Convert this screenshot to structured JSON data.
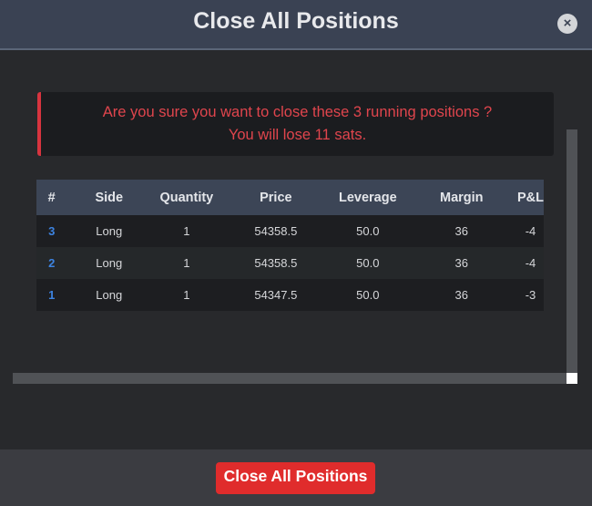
{
  "header": {
    "title": "Close All Positions",
    "close_icon": "×"
  },
  "alert": {
    "line1": "Are you sure you want to close these 3 running positions ?",
    "line2": "You will lose 11 sats."
  },
  "table": {
    "columns": [
      "#",
      "Side",
      "Quantity",
      "Price",
      "Leverage",
      "Margin",
      "P&L"
    ],
    "rows": [
      [
        "3",
        "Long",
        "1",
        "54358.5",
        "50.0",
        "36",
        "-4"
      ],
      [
        "2",
        "Long",
        "1",
        "54358.5",
        "50.0",
        "36",
        "-4"
      ],
      [
        "1",
        "Long",
        "1",
        "54347.5",
        "50.0",
        "36",
        "-3"
      ]
    ]
  },
  "footer": {
    "button_label": "Close All Positions"
  },
  "colors": {
    "header_bg": "#3a4253",
    "alert_text": "#e0454d",
    "index_link": "#3d83e0",
    "danger_button": "#e02c2c"
  }
}
